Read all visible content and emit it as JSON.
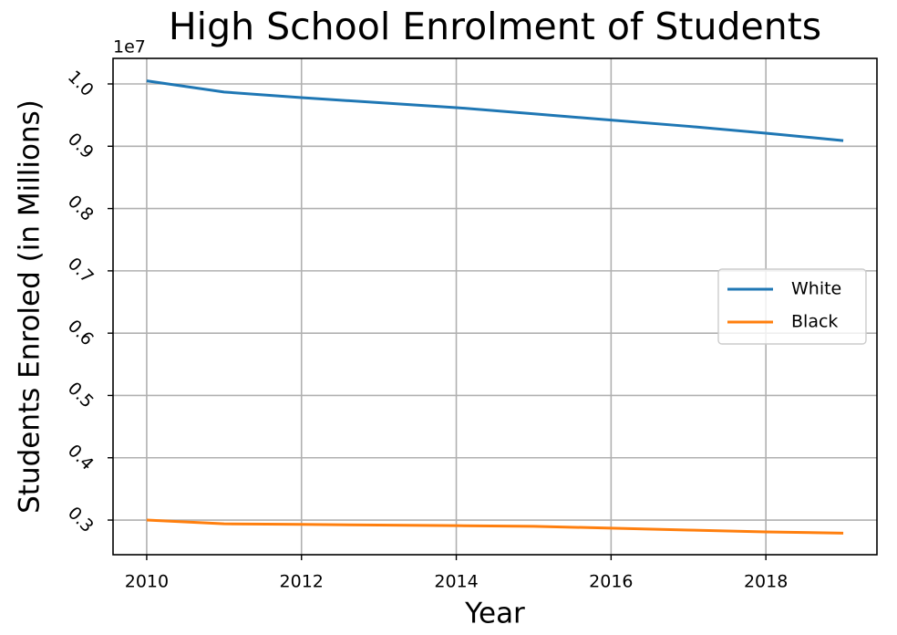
{
  "chart_data": {
    "type": "line",
    "title": "High School Enrolment of Students",
    "xlabel": "Year",
    "ylabel": "Students Enroled (in Millions)",
    "y_offset_label": "1e7",
    "x": [
      2010,
      2011,
      2012,
      2013,
      2014,
      2015,
      2016,
      2017,
      2018,
      2019
    ],
    "series": [
      {
        "name": "White",
        "color": "#1f77b4",
        "values": [
          1.005,
          0.987,
          0.978,
          0.97,
          0.962,
          0.952,
          0.942,
          0.932,
          0.921,
          0.909
        ]
      },
      {
        "name": "Black",
        "color": "#ff7f0e",
        "values": [
          0.3,
          0.294,
          0.293,
          0.292,
          0.291,
          0.29,
          0.287,
          0.284,
          0.281,
          0.279
        ]
      }
    ],
    "xlim": [
      2009.565,
      2019.435
    ],
    "xticks": [
      2010,
      2012,
      2014,
      2016,
      2018
    ],
    "ylim": [
      0.2444,
      1.041
    ],
    "yticks": [
      0.3,
      0.4,
      0.5,
      0.6,
      0.7,
      0.8,
      0.9,
      {
        "value": 1,
        "label": "1.0"
      }
    ],
    "grid": true,
    "legend": "center right"
  }
}
